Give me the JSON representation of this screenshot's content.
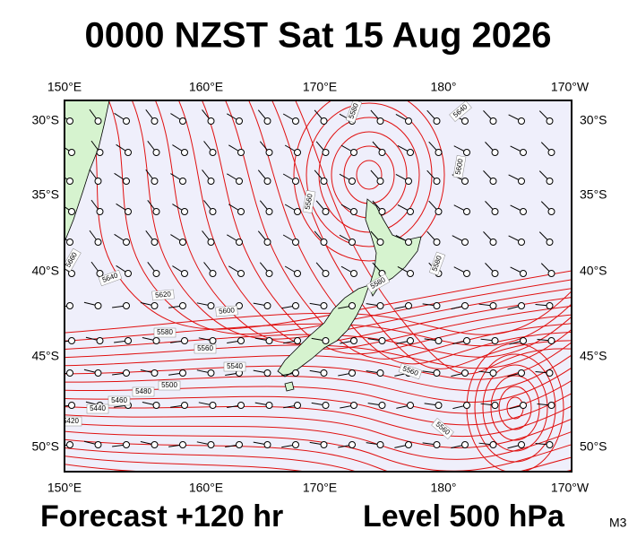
{
  "header": {
    "title": "0000 NZST Sat 15 Aug 2026"
  },
  "map": {
    "longitude_labels": [
      "150°E",
      "160°E",
      "170°E",
      "180°",
      "170°W"
    ],
    "latitude_labels": [
      "30°S",
      "35°S",
      "40°S",
      "45°S",
      "50°S"
    ],
    "contour_labels": [
      "5580",
      "5640",
      "5620",
      "5600",
      "5580",
      "5560",
      "5540",
      "5500",
      "5480",
      "5460",
      "5440",
      "5420",
      "5560",
      "5580",
      "5560",
      "5560",
      "5580",
      "5600",
      "5640",
      "5660"
    ]
  },
  "footer": {
    "forecast": "Forecast +120 hr",
    "level": "Level 500 hPa",
    "code": "M3"
  }
}
